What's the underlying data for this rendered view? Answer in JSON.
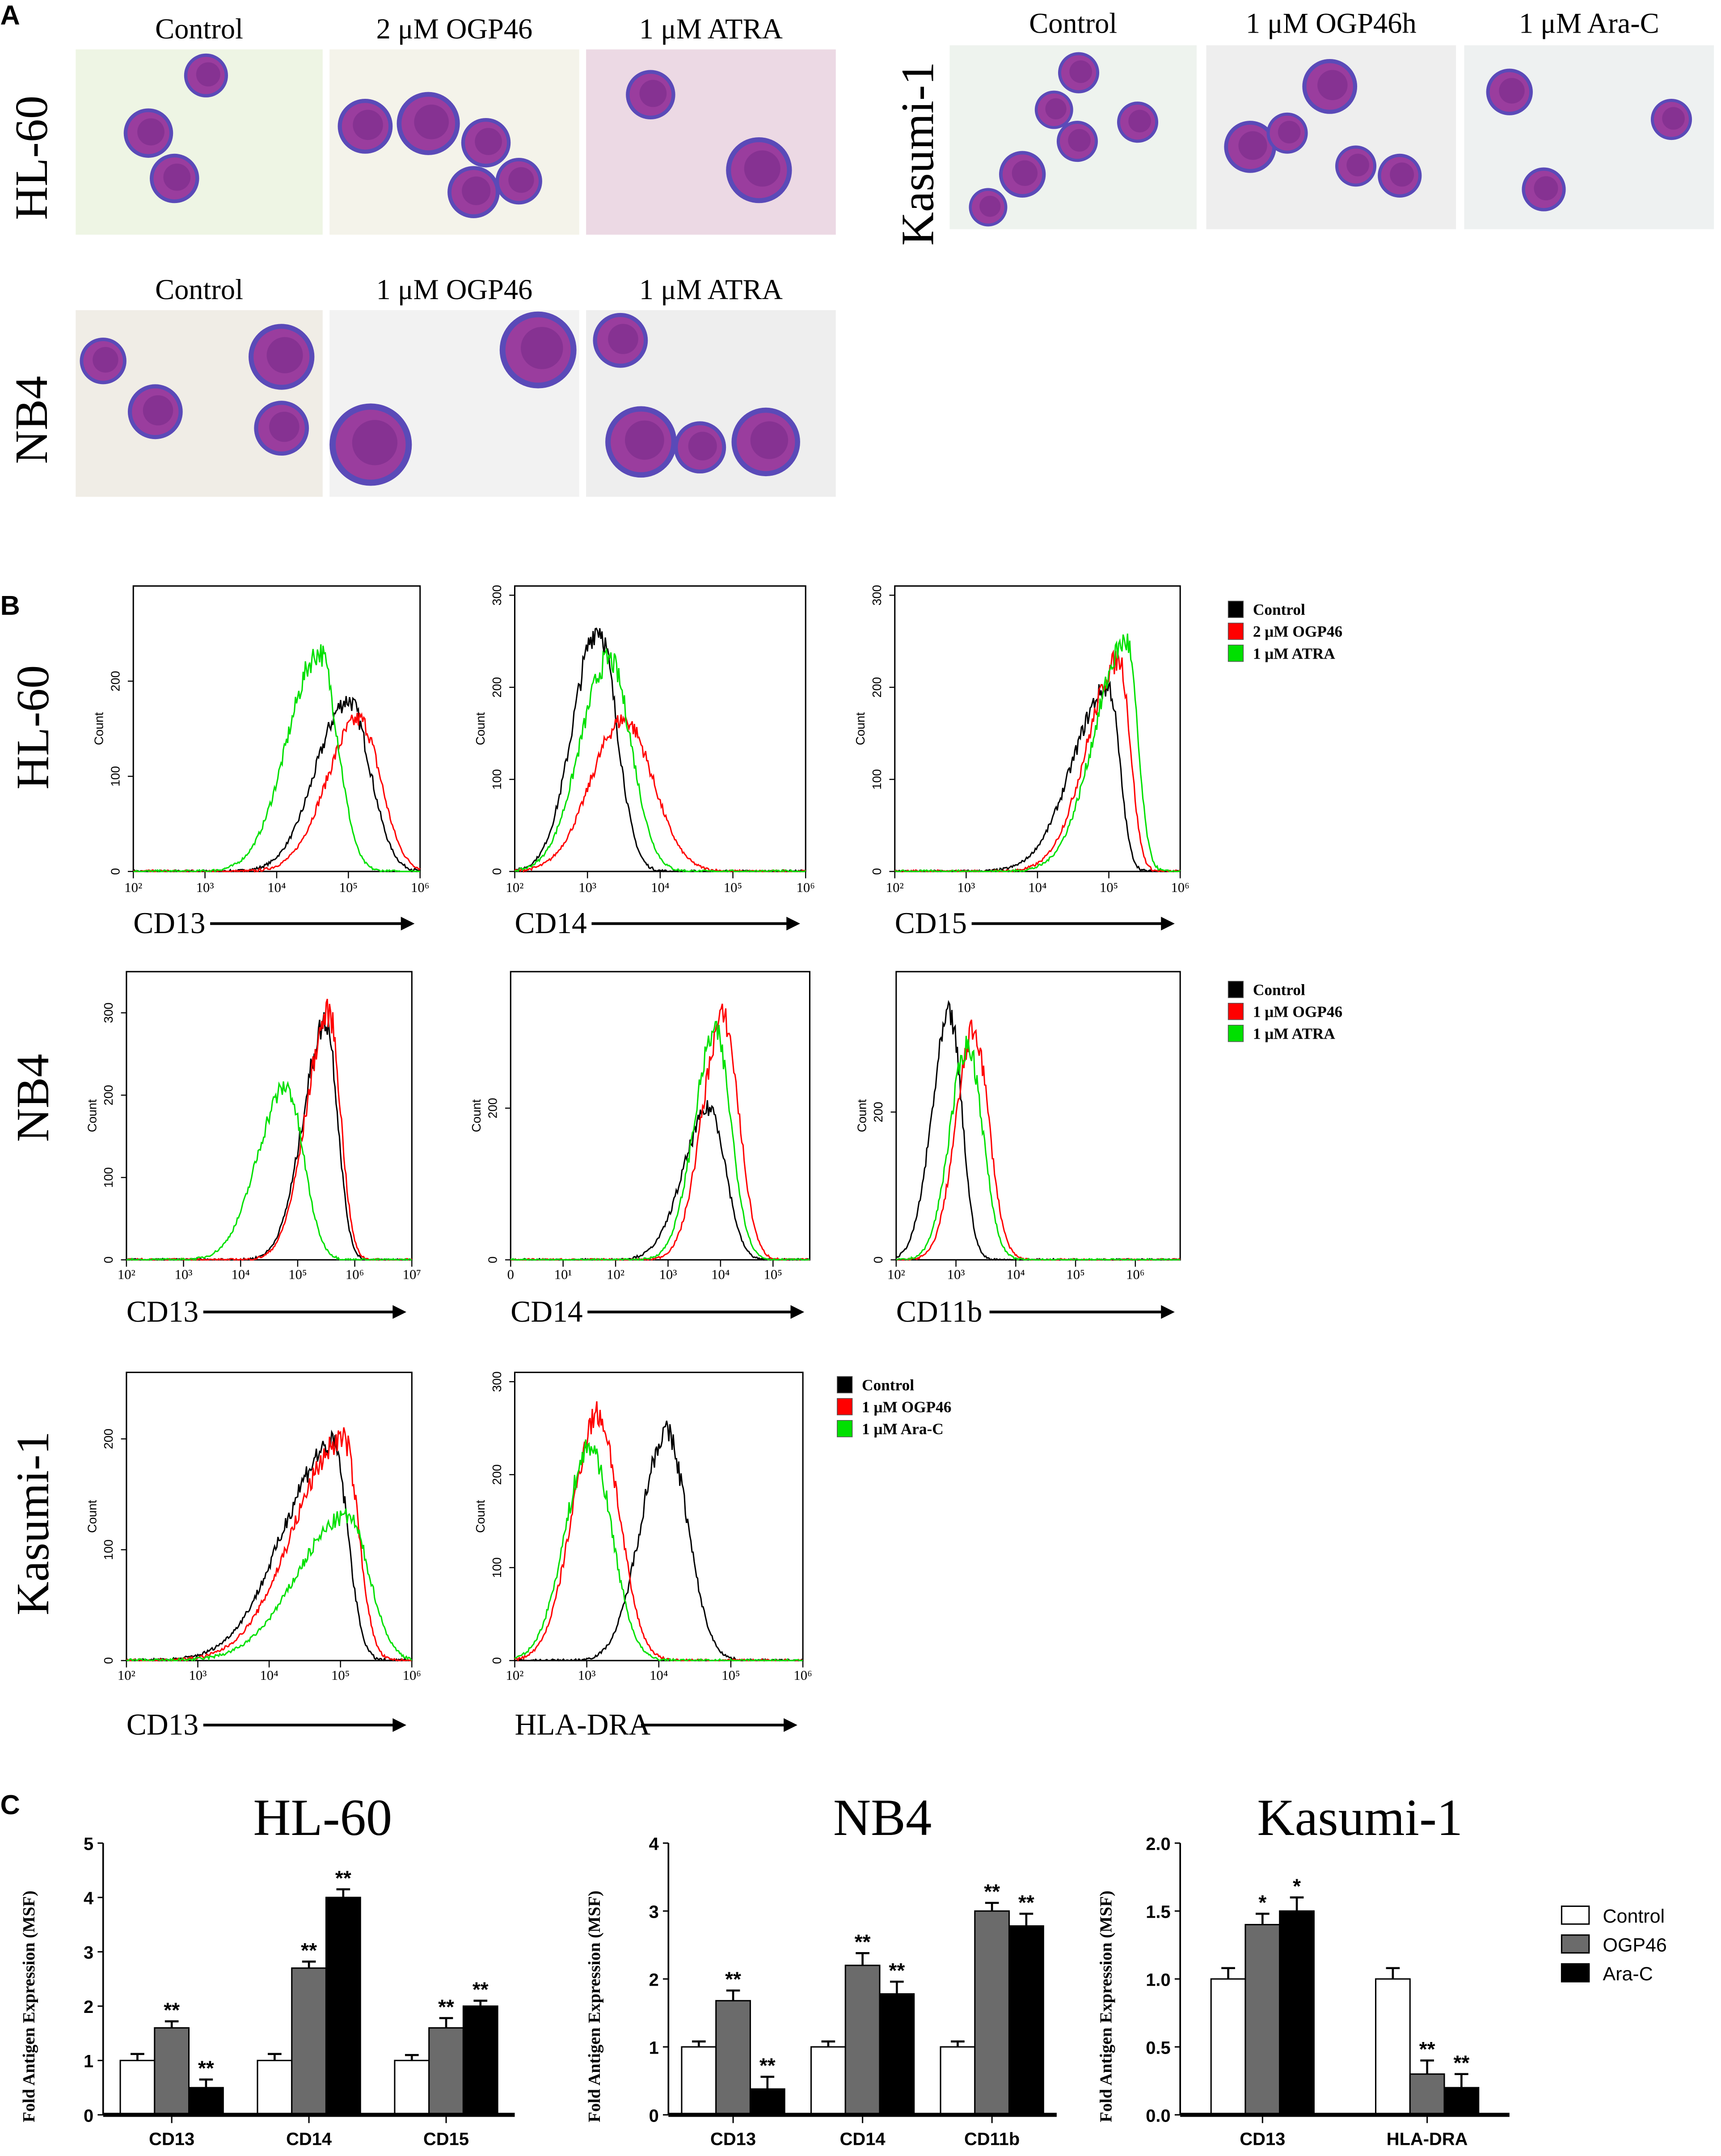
{
  "panel_labels": {
    "a": "A",
    "b": "B",
    "c": "C"
  },
  "panel_a": {
    "rows": [
      {
        "cell_line": "HL-60",
        "images": [
          "Control",
          "2 μM OGP46",
          "1 μM ATRA"
        ]
      },
      {
        "cell_line": "Kasumi-1",
        "images": [
          "Control",
          "1 μM OGP46h",
          "1 μM Ara-C"
        ]
      },
      {
        "cell_line": "NB4",
        "images": [
          "Control",
          "1 μM OGP46",
          "1 μM ATRA"
        ]
      }
    ],
    "colors": {
      "cell": "#9a3d9e",
      "nucleus": "#7a2c8a",
      "membrane": "#5a4ab8"
    }
  },
  "panel_b": {
    "y_label": "Count",
    "series_colors": {
      "control": "#000000",
      "ogp46": "#ff0000",
      "treat": "#00e000"
    },
    "rows": [
      {
        "cell_line": "HL-60",
        "legend": [
          "Control",
          "2 μM OGP46",
          "1 μM ATRA"
        ],
        "plots": [
          {
            "marker": "CD13",
            "xticks": [
              "10²",
              "10³",
              "10⁴",
              "10⁵",
              "10⁶"
            ],
            "xrange": [
              2,
              6
            ],
            "yticks": [
              "0",
              "100",
              "200"
            ],
            "ymax": 300,
            "peaks": [
              [
                5.0,
                180,
                0.45,
                0.3
              ],
              [
                5.15,
                160,
                0.45,
                0.3
              ],
              [
                4.6,
                230,
                0.45,
                0.25
              ]
            ]
          },
          {
            "marker": "CD14",
            "xticks": [
              "10²",
              "10³",
              "10⁴",
              "10⁵",
              "10⁶"
            ],
            "xrange": [
              2,
              6
            ],
            "yticks": [
              "0",
              "100",
              "200",
              "300"
            ],
            "ymax": 310,
            "peaks": [
              [
                3.15,
                265,
                0.35,
                0.25
              ],
              [
                3.5,
                165,
                0.45,
                0.4
              ],
              [
                3.3,
                230,
                0.4,
                0.3
              ]
            ]
          },
          {
            "marker": "CD15",
            "xticks": [
              "10²",
              "10³",
              "10⁴",
              "10⁵",
              "10⁶"
            ],
            "xrange": [
              2,
              6
            ],
            "yticks": [
              "0",
              "100",
              "200",
              "300"
            ],
            "ymax": 310,
            "peaks": [
              [
                5.0,
                200,
                0.5,
                0.15
              ],
              [
                5.15,
                230,
                0.45,
                0.15
              ],
              [
                5.25,
                250,
                0.45,
                0.15
              ]
            ]
          }
        ]
      },
      {
        "cell_line": "NB4",
        "legend": [
          "Control",
          "1 μM OGP46",
          "1 μM ATRA"
        ],
        "plots": [
          {
            "marker": "CD13",
            "xticks": [
              "10²",
              "10³",
              "10⁴",
              "10⁵",
              "10⁶",
              "10⁷"
            ],
            "xrange": [
              2,
              7
            ],
            "yticks": [
              "0",
              "100",
              "200",
              "300"
            ],
            "ymax": 350,
            "peaks": [
              [
                5.5,
                290,
                0.4,
                0.2
              ],
              [
                5.55,
                300,
                0.4,
                0.2
              ],
              [
                4.8,
                210,
                0.5,
                0.3
              ]
            ]
          },
          {
            "marker": "CD14",
            "xticks": [
              "0",
              "10¹",
              "10²",
              "10³",
              "10⁴",
              "10⁵"
            ],
            "xrange": [
              0,
              5.7
            ],
            "yticks": [
              "0",
              "200"
            ],
            "ymax": 380,
            "peaks": [
              [
                3.8,
                200,
                0.5,
                0.3
              ],
              [
                4.05,
                320,
                0.4,
                0.3
              ],
              [
                3.9,
                300,
                0.4,
                0.3
              ]
            ]
          },
          {
            "marker": "CD11b",
            "xticks": [
              "10²",
              "10³",
              "10⁴",
              "10⁵",
              "10⁶"
            ],
            "xrange": [
              2,
              6.75
            ],
            "yticks": [
              "0",
              "200"
            ],
            "ymax": 390,
            "peaks": [
              [
                2.9,
                330,
                0.3,
                0.2
              ],
              [
                3.3,
                310,
                0.3,
                0.25
              ],
              [
                3.2,
                290,
                0.3,
                0.25
              ]
            ]
          }
        ]
      },
      {
        "cell_line": "Kasumi-1",
        "legend": [
          "Control",
          "1 μM OGP46",
          "1 μM Ara-C"
        ],
        "plots": [
          {
            "marker": "CD13",
            "xticks": [
              "10²",
              "10³",
              "10⁴",
              "10⁵",
              "10⁶"
            ],
            "xrange": [
              2,
              6
            ],
            "yticks": [
              "0",
              "100",
              "200"
            ],
            "ymax": 260,
            "peaks": [
              [
                4.9,
                195,
                0.7,
                0.2
              ],
              [
                5.05,
                200,
                0.7,
                0.2
              ],
              [
                5.1,
                130,
                0.7,
                0.3
              ]
            ]
          },
          {
            "marker": "HLA-DRA",
            "xticks": [
              "10²",
              "10³",
              "10⁴",
              "10⁵",
              "10⁶"
            ],
            "xrange": [
              2,
              6
            ],
            "yticks": [
              "0",
              "100",
              "200",
              "300"
            ],
            "ymax": 310,
            "peaks": [
              [
                4.1,
                245,
                0.35,
                0.3
              ],
              [
                3.15,
                265,
                0.35,
                0.3
              ],
              [
                3.05,
                230,
                0.35,
                0.3
              ]
            ]
          }
        ]
      }
    ]
  },
  "chart_data": [
    {
      "type": "bar",
      "title": "HL-60",
      "ylabel": "Fold Antigen Expression (MSF)",
      "ylim": [
        0,
        5
      ],
      "yticks": [
        "0",
        "1",
        "2",
        "3",
        "4",
        "5"
      ],
      "categories": [
        "CD13",
        "CD14",
        "CD15"
      ],
      "series": [
        {
          "name": "Control",
          "values": [
            1.0,
            1.0,
            1.0
          ],
          "errors": [
            0.12,
            0.12,
            0.1
          ],
          "sig": [
            "",
            "",
            ""
          ]
        },
        {
          "name": "OGP46",
          "values": [
            1.6,
            2.7,
            1.6
          ],
          "errors": [
            0.12,
            0.12,
            0.18
          ],
          "sig": [
            "**",
            "**",
            "**"
          ]
        },
        {
          "name": "Ara-C",
          "values": [
            0.5,
            4.0,
            2.0
          ],
          "errors": [
            0.15,
            0.15,
            0.1
          ],
          "sig": [
            "**",
            "**",
            "**"
          ]
        }
      ]
    },
    {
      "type": "bar",
      "title": "NB4",
      "ylabel": "Fold Antigen Expression (MSF)",
      "ylim": [
        0,
        4
      ],
      "yticks": [
        "0",
        "1",
        "2",
        "3",
        "4"
      ],
      "categories": [
        "CD13",
        "CD14",
        "CD11b"
      ],
      "series": [
        {
          "name": "Control",
          "values": [
            1.0,
            1.0,
            1.0
          ],
          "errors": [
            0.08,
            0.08,
            0.08
          ],
          "sig": [
            "",
            "",
            ""
          ]
        },
        {
          "name": "OGP46",
          "values": [
            1.68,
            2.2,
            3.0
          ],
          "errors": [
            0.15,
            0.18,
            0.12
          ],
          "sig": [
            "**",
            "**",
            "**"
          ]
        },
        {
          "name": "Ara-C",
          "values": [
            0.38,
            1.78,
            2.78
          ],
          "errors": [
            0.18,
            0.18,
            0.18
          ],
          "sig": [
            "**",
            "**",
            "**"
          ]
        }
      ]
    },
    {
      "type": "bar",
      "title": "Kasumi-1",
      "ylabel": "Fold Antigen Expression (MSF)",
      "ylim": [
        0,
        2.0
      ],
      "yticks": [
        "0.0",
        "0.5",
        "1.0",
        "1.5",
        "2.0"
      ],
      "categories": [
        "CD13",
        "HLA-DRA"
      ],
      "series": [
        {
          "name": "Control",
          "values": [
            1.0,
            1.0
          ],
          "errors": [
            0.08,
            0.08
          ],
          "sig": [
            "",
            ""
          ]
        },
        {
          "name": "OGP46",
          "values": [
            1.4,
            0.3
          ],
          "errors": [
            0.08,
            0.1
          ],
          "sig": [
            "*",
            "**"
          ]
        },
        {
          "name": "Ara-C",
          "values": [
            1.5,
            0.2
          ],
          "errors": [
            0.1,
            0.1
          ],
          "sig": [
            "*",
            "**"
          ]
        }
      ]
    }
  ],
  "bar_legend": [
    {
      "label": "Control",
      "color": "#ffffff"
    },
    {
      "label": "OGP46",
      "color": "#6b6b6b"
    },
    {
      "label": "Ara-C",
      "color": "#000000"
    }
  ]
}
